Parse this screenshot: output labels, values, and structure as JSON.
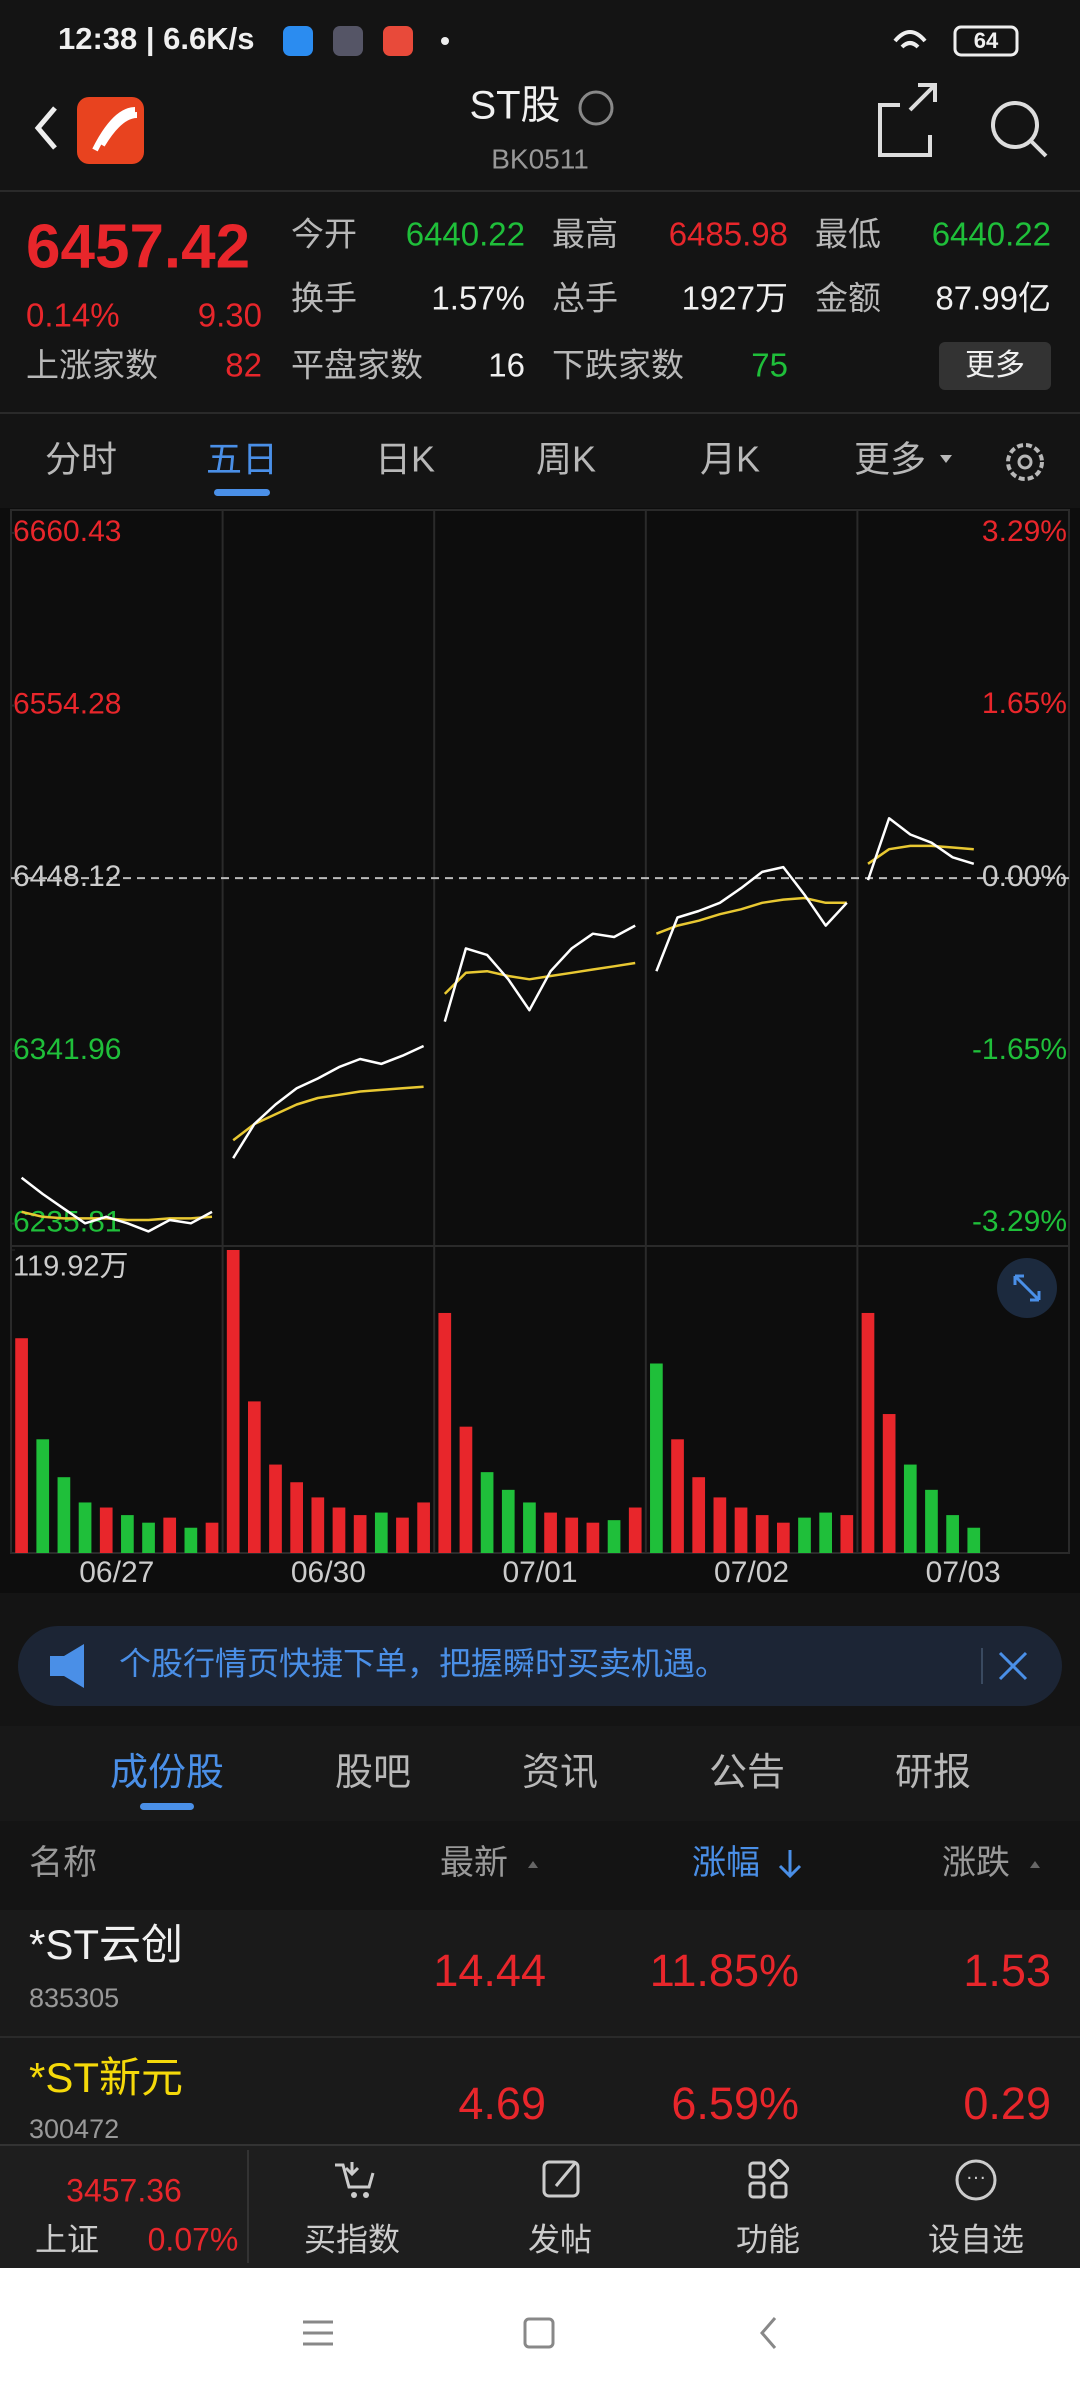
{
  "status_bar": {
    "time": "12:38 | 6.6K/s",
    "battery": "64"
  },
  "header": {
    "title": "ST股",
    "code": "BK0511"
  },
  "quote": {
    "price": "6457.42",
    "change_pct": "0.14%",
    "change": "9.30",
    "open": {
      "label": "今开",
      "value": "6440.22"
    },
    "high": {
      "label": "最高",
      "value": "6485.98"
    },
    "low": {
      "label": "最低",
      "value": "6440.22"
    },
    "turnover": {
      "label": "换手",
      "value": "1.57%"
    },
    "volume": {
      "label": "总手",
      "value": "1927万"
    },
    "amount": {
      "label": "金额",
      "value": "87.99亿"
    },
    "rising": {
      "label": "上涨家数",
      "value": "82"
    },
    "flat": {
      "label": "平盘家数",
      "value": "16"
    },
    "falling": {
      "label": "下跌家数",
      "value": "75"
    },
    "more_button": "更多"
  },
  "tabs": [
    "分时",
    "五日",
    "日K",
    "周K",
    "月K",
    "更多"
  ],
  "chart_data": {
    "type": "intraday",
    "categories": [
      "06/27",
      "06/30",
      "07/01",
      "07/02",
      "07/03"
    ],
    "ylim": [
      6224.5,
      6674.5
    ],
    "yticks": [
      6235.81,
      6341.96,
      6448.12,
      6554.28,
      6660.43
    ],
    "y2lim": [
      -3.47,
      3.51
    ],
    "y2ticks": [
      {
        "value": -3.29,
        "label": "-3.29%"
      },
      {
        "value": -1.65,
        "label": "-1.65%"
      },
      {
        "value": 0,
        "label": "0.00%"
      },
      {
        "value": 1.65,
        "label": "1.65%"
      },
      {
        "value": 3.29,
        "label": "3.29%"
      }
    ],
    "price": [
      6264,
      6254,
      6245,
      6236,
      6240,
      6236,
      6231,
      6238,
      6236,
      6243,
      6276,
      6297,
      6309,
      6319,
      6325,
      6332,
      6337,
      6334,
      6339,
      6345,
      6360,
      6405,
      6401,
      6386,
      6367,
      6391,
      6405,
      6414,
      6412,
      6419,
      6391,
      6424,
      6428,
      6433,
      6442,
      6452,
      6455,
      6438,
      6419,
      6433,
      6447,
      6485,
      6475,
      6470,
      6461,
      6457,
      null,
      null,
      null,
      null
    ],
    "average": [
      6243,
      6240,
      6239,
      6239,
      6239,
      6238,
      6238,
      6239,
      6239,
      6240,
      6287,
      6297,
      6303,
      6309,
      6313,
      6315,
      6317,
      6318,
      6319,
      6320,
      6377,
      6390,
      6391,
      6388,
      6386,
      6388,
      6390,
      6392,
      6394,
      6396,
      6414,
      6419,
      6422,
      6426,
      6429,
      6433,
      6435,
      6436,
      6433,
      6433,
      6457,
      6466,
      6468,
      6468,
      6467,
      6466,
      null,
      null,
      null,
      null
    ],
    "volume": [
      85,
      45,
      30,
      20,
      18,
      15,
      12,
      14,
      10,
      12,
      119.92,
      60,
      35,
      28,
      22,
      18,
      15,
      16,
      14,
      20,
      95,
      50,
      32,
      25,
      20,
      16,
      14,
      12,
      13,
      18,
      75,
      45,
      30,
      22,
      18,
      15,
      12,
      14,
      16,
      15,
      95,
      55,
      35,
      25,
      15,
      10,
      null,
      null,
      null,
      null
    ],
    "volume_lim": [
      0,
      119.92
    ],
    "volume_ticks": [
      {
        "value": 119.92,
        "label": "119.92万"
      }
    ],
    "price_color": "#ffffff",
    "average_color": "#e8c832",
    "up_color": "#e8262b",
    "down_color": "#1fbf3a"
  },
  "banner": {
    "text": "个股行情页快捷下单，把握瞬时买卖机遇。"
  },
  "sub_tabs": [
    "成份股",
    "股吧",
    "资讯",
    "公告",
    "研报"
  ],
  "table": {
    "header": [
      "名称",
      "最新",
      "涨幅",
      "涨跌"
    ],
    "rows": [
      {
        "name": "*ST云创",
        "code": "835305",
        "latest": "14.44",
        "pct": "11.85%",
        "change": "1.53"
      },
      {
        "name": "*ST新元",
        "code": "300472",
        "latest": "4.69",
        "pct": "6.59%",
        "change": "0.29"
      }
    ]
  },
  "bottom_nav": {
    "index": {
      "value": "3457.36",
      "name": "上证",
      "pct": "0.07%"
    },
    "items": [
      "买指数",
      "发帖",
      "功能",
      "设自选"
    ]
  }
}
